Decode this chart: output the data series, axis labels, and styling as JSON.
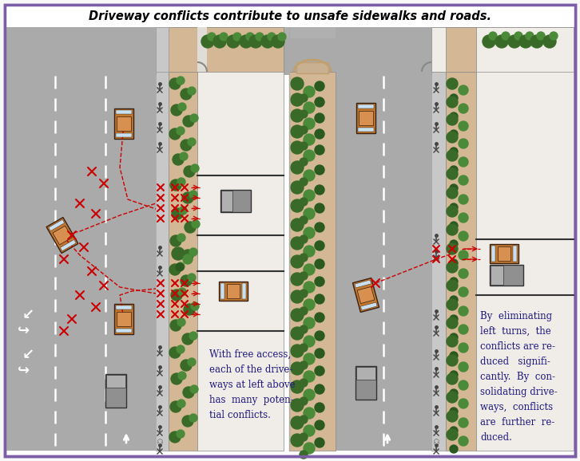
{
  "title": "Driveway conflicts contribute to unsafe sidewalks and roads.",
  "left_caption": "With free access,\neach of the drive-\nways at left above\nhas  many  poten-\ntial conflicts.",
  "right_caption": "By  eliminating\nleft  turns,  the\nconflicts are re-\nduced   signifi-\ncantly.  By  con-\nsolidating drive-\nways,  conflicts\nare  further  re-\nduced.",
  "bg_color": "#ffffff",
  "border_color": "#7b5ea7",
  "road_color": "#aaaaaa",
  "sidewalk_color": "#c8c8c8",
  "buffer_color": "#d4b896",
  "driveway_color": "#f0ede8",
  "car_body": "#c07830",
  "car_roof": "#d89050",
  "truck_body": "#909090",
  "truck_cab": "#b0b0b0",
  "conflict_color": "#cc0000",
  "caption_color": "#1e1880",
  "bush_dark": "#3a6a28",
  "bush_mid": "#4a8a38",
  "bush_light": "#2a5a20",
  "white": "#ffffff",
  "lane_line": "#ffffff",
  "dark_edge": "#555555"
}
